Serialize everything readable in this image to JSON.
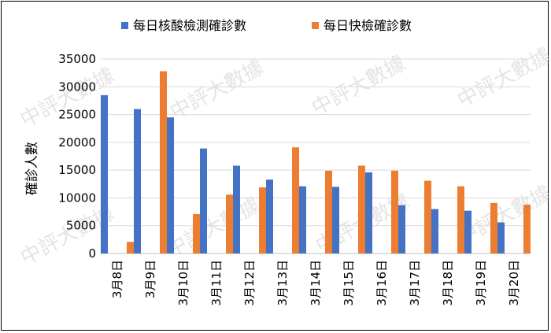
{
  "chart_data": {
    "type": "bar",
    "title": "",
    "xlabel": "",
    "ylabel": "確診人數",
    "ylim": [
      0,
      35000
    ],
    "yticks": [
      0,
      5000,
      10000,
      15000,
      20000,
      25000,
      30000,
      35000
    ],
    "ytick_labels": [
      "0",
      "5000",
      "10000",
      "15000",
      "20000",
      "25000",
      "30000",
      "35000"
    ],
    "grid": true,
    "legend_position": "top",
    "categories": [
      "3月8日",
      "3月9日",
      "3月10日",
      "3月11日",
      "3月12日",
      "3月13日",
      "3月14日",
      "3月15日",
      "3月16日",
      "3月17日",
      "3月18日",
      "3月19日",
      "3月20日"
    ],
    "series": [
      {
        "name": "每日核酸檢測確診數",
        "color": "#4472c4",
        "values": [
          28500,
          26000,
          24500,
          18900,
          15800,
          13300,
          12100,
          12000,
          14600,
          8700,
          8000,
          7700,
          5600
        ]
      },
      {
        "name": "每日快檢確診數",
        "color": "#ed7d31",
        "values": [
          2100,
          32800,
          7100,
          10600,
          11900,
          19100,
          14900,
          15800,
          14900,
          13100,
          12100,
          9100,
          8800
        ]
      }
    ]
  },
  "watermark": "中評大數據"
}
